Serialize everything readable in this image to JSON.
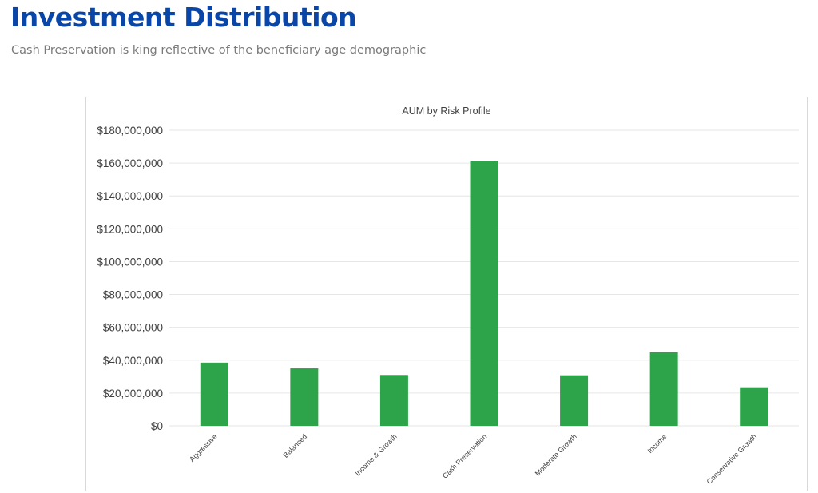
{
  "header": {
    "title": "Investment Distribution",
    "subtitle": "Cash Preservation is king reflective of the beneficiary age demographic"
  },
  "colors": {
    "title": "#0a46a8",
    "subtitle": "#7a7a7a",
    "bar": "#2ea44a",
    "gridline": "#e6e6e6"
  },
  "chart_data": {
    "type": "bar",
    "title": "AUM by Risk Profile",
    "xlabel": "",
    "ylabel": "",
    "categories": [
      "Aggressive",
      "Balanced",
      "Income & Growth",
      "Cash Preservation",
      "Moderate Growth",
      "Income",
      "Conservative Growth"
    ],
    "values": [
      38500000,
      35000000,
      31000000,
      161500000,
      30800000,
      44800000,
      23500000
    ],
    "ylim": [
      0,
      180000000
    ],
    "y_ticks": [
      {
        "value": 0,
        "label": "$0"
      },
      {
        "value": 20000000,
        "label": "$20,000,000"
      },
      {
        "value": 40000000,
        "label": "$40,000,000"
      },
      {
        "value": 60000000,
        "label": "$60,000,000"
      },
      {
        "value": 80000000,
        "label": "$80,000,000"
      },
      {
        "value": 100000000,
        "label": "$100,000,000"
      },
      {
        "value": 120000000,
        "label": "$120,000,000"
      },
      {
        "value": 140000000,
        "label": "$140,000,000"
      },
      {
        "value": 160000000,
        "label": "$160,000,000"
      },
      {
        "value": 180000000,
        "label": "$180,000,000"
      }
    ],
    "grid": true,
    "legend": "none"
  }
}
